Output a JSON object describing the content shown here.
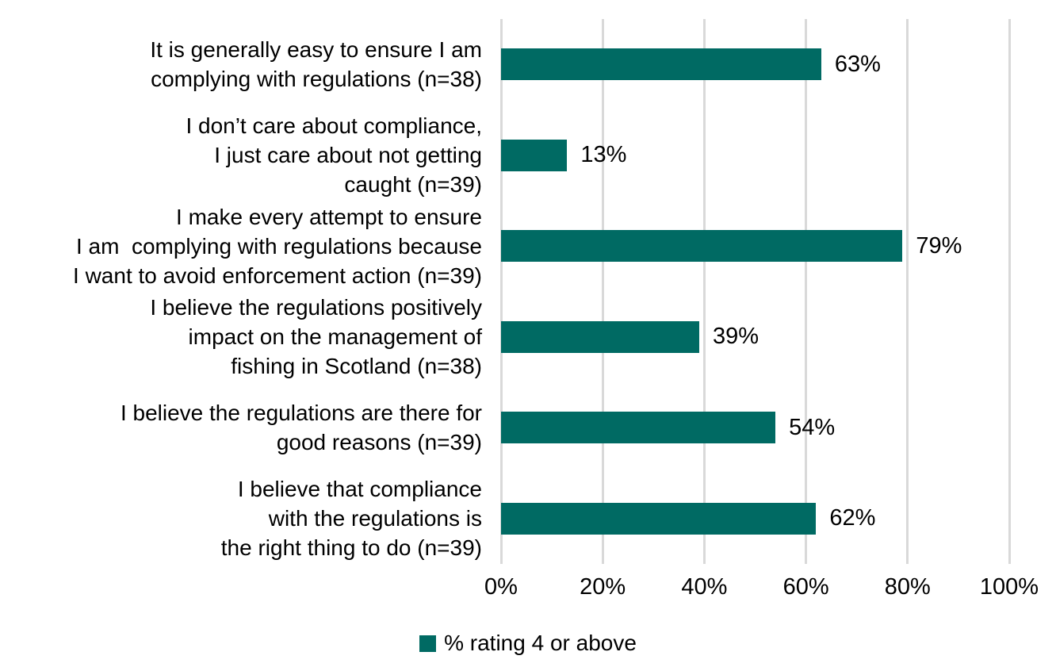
{
  "chart_data": {
    "type": "bar",
    "orientation": "horizontal",
    "title": "",
    "xlabel": "",
    "ylabel": "",
    "grid": true,
    "categories": [
      "It is generally easy to ensure I am\ncomplying with regulations (n=38)",
      "I don’t care about compliance,\nI just care about not getting\ncaught (n=39)",
      "I make every attempt to ensure\nI am  complying with regulations because\nI want to avoid enforcement action (n=39)",
      "I believe the regulations positively\nimpact on the management of\nfishing in Scotland (n=38)",
      "I believe the regulations are there for\ngood reasons (n=39)",
      "I believe that compliance\nwith the regulations is\nthe right thing to do (n=39)"
    ],
    "values": [
      63,
      13,
      79,
      39,
      54,
      62
    ],
    "value_labels": [
      "63%",
      "13%",
      "79%",
      "39%",
      "54%",
      "62%"
    ],
    "x_tick_values": [
      0,
      20,
      40,
      60,
      80,
      100
    ],
    "x_tick_labels": [
      "0%",
      "20%",
      "40%",
      "60%",
      "80%",
      "100%"
    ],
    "xlim": [
      0,
      100
    ],
    "legend": {
      "label": "% rating 4 or above",
      "position": "bottom"
    },
    "colors": {
      "bar": "#006A63",
      "gridline": "#D9D9D9",
      "text": "#000000",
      "background": "#FFFFFF"
    }
  }
}
